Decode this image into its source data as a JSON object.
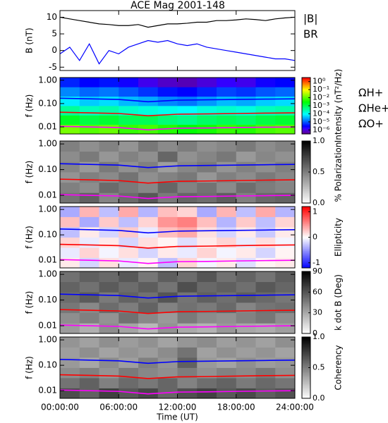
{
  "title": "ACE Mag 2001-148",
  "chart_data": [
    {
      "type": "line",
      "ylabel": "B (nT)",
      "xlim": [
        0,
        24
      ],
      "ylim": [
        -6,
        12
      ],
      "yticks": [
        -5,
        0,
        5,
        10
      ],
      "x": [
        0,
        1,
        2,
        3,
        4,
        5,
        6,
        7,
        8,
        9,
        10,
        11,
        12,
        13,
        14,
        15,
        16,
        17,
        18,
        19,
        20,
        21,
        22,
        23,
        24
      ],
      "series": [
        {
          "name": "|B|",
          "color": "#000000",
          "values": [
            10,
            9.5,
            9,
            8.5,
            8,
            7.8,
            7.5,
            7.5,
            7.8,
            7,
            7.5,
            8,
            8,
            8.2,
            8.5,
            8.5,
            9,
            9,
            9.2,
            9.5,
            9.3,
            9,
            9.5,
            9.8,
            10
          ]
        },
        {
          "name": "BR",
          "color": "#0000ff",
          "values": [
            -1,
            1,
            -3,
            2,
            -4,
            0,
            -1,
            1,
            2,
            3,
            2.5,
            3,
            2,
            1.5,
            2,
            1,
            0.5,
            0,
            -0.5,
            -1,
            -1.5,
            -2,
            -2.5,
            -2.5,
            -3
          ]
        }
      ]
    },
    {
      "type": "heatmap",
      "ylabel": "f (Hz)",
      "log_y": true,
      "xlim": [
        0,
        24
      ],
      "ylim": [
        0.005,
        1.3
      ],
      "yticks": [
        0.01,
        {
          "value": 0.1,
          "label": "0.10"
        },
        {
          "value": 1,
          "label": "1.00"
        }
      ],
      "colormap": "rainbow",
      "clabel": "Intensity (nT²/Hz)",
      "clim": [
        -6.5,
        0.5
      ],
      "cticks": [
        {
          "value": 0,
          "label": "10⁰"
        },
        {
          "value": -1,
          "label": "10⁻¹"
        },
        {
          "value": -2,
          "label": "10⁻²"
        },
        {
          "value": -3,
          "label": "10⁻³"
        },
        {
          "value": -4,
          "label": "10⁻⁴"
        },
        {
          "value": -5,
          "label": "10⁻⁵"
        },
        {
          "value": -6,
          "label": "10⁻⁶"
        }
      ],
      "z": [
        [
          -1.8,
          -2.0,
          -1.9,
          -2.2,
          -2.1,
          -2.3,
          -2.5,
          -2.4,
          -2.2,
          -2.3,
          -2.1,
          -2.0
        ],
        [
          -2.7,
          -2.9,
          -2.8,
          -3.0,
          -3.0,
          -3.2,
          -3.3,
          -3.1,
          -3.0,
          -3.1,
          -2.9,
          -2.8
        ],
        [
          -3.4,
          -3.6,
          -3.5,
          -3.7,
          -3.8,
          -3.9,
          -4.0,
          -3.8,
          -3.7,
          -3.8,
          -3.6,
          -3.5
        ],
        [
          -4.1,
          -4.3,
          -4.2,
          -4.4,
          -4.5,
          -4.7,
          -4.8,
          -4.6,
          -4.4,
          -4.5,
          -4.3,
          -4.2
        ],
        [
          -4.7,
          -4.9,
          -4.8,
          -5.0,
          -5.2,
          -5.4,
          -5.5,
          -5.3,
          -5.1,
          -5.2,
          -5.0,
          -4.9
        ],
        [
          -5.3,
          -5.5,
          -5.4,
          -5.6,
          -5.9,
          -6.1,
          -6.2,
          -6.0,
          -5.8,
          -5.9,
          -5.6,
          -5.5
        ]
      ],
      "x": [
        0,
        3,
        6,
        9,
        12,
        15,
        18,
        21,
        24
      ],
      "series": [
        {
          "name": "ΩH+",
          "color": "#0000ff",
          "values": [
            0.17,
            0.16,
            0.15,
            0.12,
            0.14,
            0.145,
            0.15,
            0.155,
            0.16
          ]
        },
        {
          "name": "ΩHe+",
          "color": "#ff0000",
          "values": [
            0.0425,
            0.04,
            0.0375,
            0.03,
            0.035,
            0.036,
            0.0375,
            0.039,
            0.04
          ]
        },
        {
          "name": "ΩO+",
          "color": "#ff00ff",
          "values": [
            0.0106,
            0.01,
            0.0094,
            0.0075,
            0.0088,
            0.009,
            0.0094,
            0.0097,
            0.01
          ]
        }
      ]
    },
    {
      "type": "heatmap",
      "ylabel": "f (Hz)",
      "log_y": true,
      "xlim": [
        0,
        24
      ],
      "ylim": [
        0.005,
        1.3
      ],
      "yticks": [
        0.01,
        {
          "value": 0.1,
          "label": "0.10"
        },
        {
          "value": 1,
          "label": "1.00"
        }
      ],
      "colormap": "gray_r",
      "clabel": "% Polarization",
      "clim": [
        0,
        1
      ],
      "cticks": [
        {
          "value": 0,
          "label": "0.0"
        },
        0.5,
        {
          "value": 1,
          "label": "1.0"
        }
      ],
      "z": [
        [
          0.55,
          0.62,
          0.48,
          0.58,
          0.66,
          0.52,
          0.6,
          0.57,
          0.63,
          0.5,
          0.59,
          0.61
        ],
        [
          0.5,
          0.45,
          0.58,
          0.52,
          0.47,
          0.6,
          0.49,
          0.55,
          0.46,
          0.57,
          0.51,
          0.48
        ],
        [
          0.42,
          0.5,
          0.46,
          0.55,
          0.44,
          0.49,
          0.53,
          0.41,
          0.5,
          0.45,
          0.52,
          0.47
        ],
        [
          0.48,
          0.4,
          0.52,
          0.43,
          0.5,
          0.38,
          0.47,
          0.52,
          0.42,
          0.49,
          0.44,
          0.5
        ],
        [
          0.45,
          0.52,
          0.41,
          0.49,
          0.44,
          0.6,
          0.43,
          0.48,
          0.53,
          0.4,
          0.47,
          0.43
        ],
        [
          0.5,
          0.44,
          0.49,
          0.42,
          0.53,
          0.46,
          0.51,
          0.44,
          0.47,
          0.52,
          0.45,
          0.49
        ]
      ],
      "x": [
        0,
        3,
        6,
        9,
        12,
        15,
        18,
        21,
        24
      ],
      "series": [
        {
          "color": "#0000ff",
          "values": [
            0.17,
            0.16,
            0.15,
            0.12,
            0.14,
            0.145,
            0.15,
            0.155,
            0.16
          ]
        },
        {
          "color": "#ff0000",
          "values": [
            0.0425,
            0.04,
            0.0375,
            0.03,
            0.035,
            0.036,
            0.0375,
            0.039,
            0.04
          ]
        },
        {
          "color": "#ff00ff",
          "values": [
            0.0106,
            0.01,
            0.0094,
            0.0075,
            0.0088,
            0.009,
            0.0094,
            0.0097,
            0.01
          ]
        }
      ]
    },
    {
      "type": "heatmap",
      "ylabel": "f (Hz)",
      "log_y": true,
      "xlim": [
        0,
        24
      ],
      "ylim": [
        0.005,
        1.3
      ],
      "yticks": [
        0.01,
        {
          "value": 0.1,
          "label": "0.10"
        },
        {
          "value": 1,
          "label": "1.00"
        }
      ],
      "colormap": "bwr",
      "clabel": "Ellipticity",
      "clim": [
        -1.2,
        1.2
      ],
      "cticks": [
        -1,
        0,
        1
      ],
      "z": [
        [
          0.1,
          -0.2,
          0.15,
          -0.1,
          0.05,
          -0.3,
          0.2,
          -0.05,
          0.1,
          -0.15,
          0.05,
          0.1
        ],
        [
          -0.1,
          0.2,
          -0.05,
          0.15,
          -0.2,
          0.1,
          -0.1,
          0.2,
          -0.05,
          0.1,
          -0.2,
          0.05
        ],
        [
          0.2,
          -0.1,
          0.1,
          -0.2,
          0.15,
          0.05,
          -0.15,
          0.1,
          0.2,
          -0.1,
          0.15,
          -0.05
        ],
        [
          -0.3,
          0.1,
          -0.2,
          0.25,
          -0.1,
          0.3,
          0.4,
          0.15,
          -0.2,
          0.1,
          -0.25,
          0.1
        ],
        [
          0.3,
          -0.4,
          0.25,
          -0.3,
          0.2,
          0.5,
          0.6,
          0.3,
          -0.35,
          0.25,
          -0.3,
          0.2
        ],
        [
          -0.4,
          0.35,
          -0.3,
          0.4,
          -0.35,
          0.3,
          0.2,
          -0.4,
          0.35,
          -0.3,
          0.4,
          -0.35
        ]
      ],
      "x": [
        0,
        3,
        6,
        9,
        12,
        15,
        18,
        21,
        24
      ],
      "series": [
        {
          "color": "#0000ff",
          "values": [
            0.17,
            0.16,
            0.15,
            0.12,
            0.14,
            0.145,
            0.15,
            0.155,
            0.16
          ]
        },
        {
          "color": "#ff0000",
          "values": [
            0.0425,
            0.04,
            0.0375,
            0.03,
            0.035,
            0.036,
            0.0375,
            0.039,
            0.04
          ]
        },
        {
          "color": "#ff00ff",
          "values": [
            0.0106,
            0.01,
            0.0094,
            0.0075,
            0.0088,
            0.009,
            0.0094,
            0.0097,
            0.01
          ]
        }
      ]
    },
    {
      "type": "heatmap",
      "ylabel": "f (Hz)",
      "log_y": true,
      "xlim": [
        0,
        24
      ],
      "ylim": [
        0.005,
        1.3
      ],
      "yticks": [
        0.01,
        {
          "value": 0.1,
          "label": "0.10"
        },
        {
          "value": 1,
          "label": "1.00"
        }
      ],
      "colormap": "gray_r",
      "clabel": "k dot B (Deg)",
      "clim": [
        0,
        90
      ],
      "cticks": [
        0,
        30,
        60,
        90
      ],
      "z": [
        [
          35,
          28,
          40,
          32,
          25,
          38,
          30,
          27,
          36,
          31,
          29,
          34
        ],
        [
          40,
          45,
          38,
          50,
          42,
          36,
          47,
          41,
          39,
          44,
          48,
          40
        ],
        [
          48,
          42,
          52,
          46,
          55,
          44,
          50,
          47,
          53,
          43,
          49,
          51
        ],
        [
          52,
          58,
          47,
          55,
          50,
          60,
          49,
          56,
          51,
          57,
          53,
          48
        ],
        [
          55,
          50,
          58,
          52,
          57,
          49,
          62,
          53,
          56,
          51,
          59,
          54
        ],
        [
          50,
          56,
          53,
          59,
          48,
          57,
          52,
          60,
          50,
          55,
          49,
          57
        ]
      ],
      "x": [
        0,
        3,
        6,
        9,
        12,
        15,
        18,
        21,
        24
      ],
      "series": [
        {
          "color": "#0000ff",
          "values": [
            0.17,
            0.16,
            0.15,
            0.12,
            0.14,
            0.145,
            0.15,
            0.155,
            0.16
          ]
        },
        {
          "color": "#ff0000",
          "values": [
            0.0425,
            0.04,
            0.0375,
            0.03,
            0.035,
            0.036,
            0.0375,
            0.039,
            0.04
          ]
        },
        {
          "color": "#ff00ff",
          "values": [
            0.0106,
            0.01,
            0.0094,
            0.0075,
            0.0088,
            0.009,
            0.0094,
            0.0097,
            0.01
          ]
        }
      ]
    },
    {
      "type": "heatmap",
      "ylabel": "f (Hz)",
      "log_y": true,
      "xlim": [
        0,
        24
      ],
      "ylim": [
        0.005,
        1.3
      ],
      "yticks": [
        0.01,
        {
          "value": 0.1,
          "label": "0.10"
        },
        {
          "value": 1,
          "label": "1.00"
        }
      ],
      "colormap": "gray_r",
      "clabel": "Coherency",
      "clim": [
        0,
        1
      ],
      "cticks": [
        {
          "value": 0,
          "label": "0.0"
        },
        0.5,
        {
          "value": 1,
          "label": "1.0"
        }
      ],
      "z": [
        [
          0.7,
          0.62,
          0.75,
          0.66,
          0.72,
          0.6,
          0.69,
          0.74,
          0.65,
          0.71,
          0.63,
          0.68
        ],
        [
          0.55,
          0.62,
          0.5,
          0.58,
          0.53,
          0.6,
          0.49,
          0.57,
          0.61,
          0.52,
          0.59,
          0.54
        ],
        [
          0.45,
          0.5,
          0.42,
          0.52,
          0.47,
          0.44,
          0.51,
          0.43,
          0.49,
          0.46,
          0.53,
          0.44
        ],
        [
          0.4,
          0.35,
          0.45,
          0.38,
          0.5,
          0.42,
          0.62,
          0.4,
          0.36,
          0.44,
          0.39,
          0.41
        ],
        [
          0.38,
          0.44,
          0.36,
          0.42,
          0.39,
          0.45,
          0.55,
          0.37,
          0.43,
          0.38,
          0.42,
          0.36
        ],
        [
          0.42,
          0.37,
          0.44,
          0.39,
          0.43,
          0.36,
          0.41,
          0.45,
          0.38,
          0.42,
          0.37,
          0.44
        ]
      ],
      "x": [
        0,
        3,
        6,
        9,
        12,
        15,
        18,
        21,
        24
      ],
      "series": [
        {
          "color": "#0000ff",
          "values": [
            0.17,
            0.16,
            0.15,
            0.12,
            0.14,
            0.145,
            0.15,
            0.155,
            0.16
          ]
        },
        {
          "color": "#ff0000",
          "values": [
            0.0425,
            0.04,
            0.0375,
            0.03,
            0.035,
            0.036,
            0.0375,
            0.039,
            0.04
          ]
        },
        {
          "color": "#ff00ff",
          "values": [
            0.0106,
            0.01,
            0.0094,
            0.0075,
            0.0088,
            0.009,
            0.0094,
            0.0097,
            0.01
          ]
        }
      ],
      "xlabel": "Time (UT)",
      "xticks": [
        {
          "value": 0,
          "label": "00:00:00"
        },
        {
          "value": 6,
          "label": "06:00:00"
        },
        {
          "value": 12,
          "label": "12:00:00"
        },
        {
          "value": 18,
          "label": "18:00:00"
        },
        {
          "value": 24,
          "label": "24:00:00"
        }
      ]
    }
  ]
}
